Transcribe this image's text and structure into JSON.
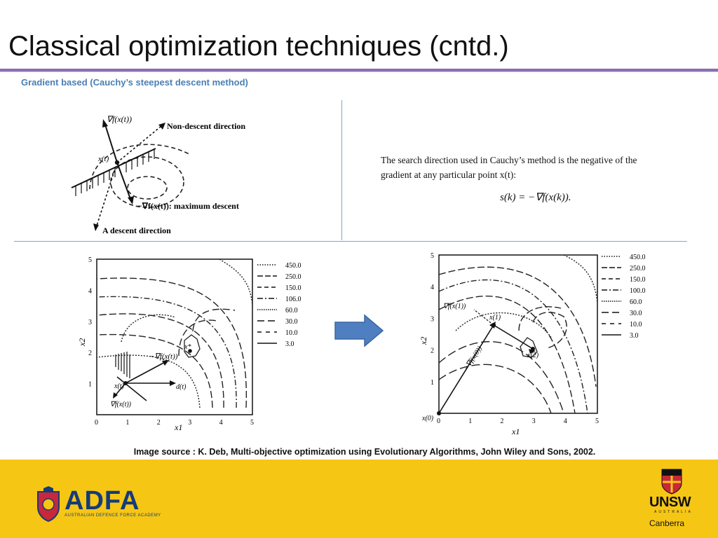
{
  "slide": {
    "title": "Classical optimization techniques (cntd.)",
    "subtitle": "Gradient based (Cauchy’s steepest descent method)",
    "caption": "Image source : K. Deb, Multi-objective optimization using Evolutionary Algorithms, John Wiley and Sons, 2002."
  },
  "diagram": {
    "grad_label": "∇f(x(t))",
    "point_label": "x(t)",
    "non_descent": "Non-descent direction",
    "max_descent": "−∇f(x(t)): maximum descent",
    "descent": "A descent direction"
  },
  "search_text": {
    "line1": "The search direction used in Cauchy’s method is the negative of the",
    "line2": "gradient at any particular point x(t):",
    "formula": "s(k) = −∇f(x(k))."
  },
  "plot_left": {
    "legend": [
      "450.0",
      "250.0",
      "150.0",
      "106.0",
      "60.0",
      "30.0",
      "10.0",
      "3.0"
    ],
    "xticks": [
      "0",
      "1",
      "2",
      "3",
      "4",
      "5"
    ],
    "yticks": [
      "1",
      "2",
      "3",
      "4",
      "5"
    ],
    "xlabel": "x1",
    "ylabel": "x2",
    "labels": {
      "neg_grad": "−∇f(x(t))",
      "point": "x(t)",
      "direction": "d(t)",
      "grad": "∇f(x(t))",
      "optimum": "x*"
    }
  },
  "plot_right": {
    "legend": [
      "450.0",
      "250.0",
      "150.0",
      "100.0",
      "60.0",
      "30.0",
      "10.0",
      "3.0"
    ],
    "xticks": [
      "0",
      "1",
      "2",
      "3",
      "4",
      "5"
    ],
    "yticks": [
      "1",
      "2",
      "3",
      "4",
      "5"
    ],
    "xlabel": "x1",
    "ylabel": "x2",
    "labels": {
      "grad1": "∇f(x(1))",
      "x1": "x(1)",
      "grad0": "−∇f(x(0))",
      "x2": "x(2)",
      "x0": "x(0)"
    }
  },
  "arrow": {
    "color": "#4f7fc0"
  },
  "footer": {
    "adfa": "ADFA",
    "adfa_sub": "AUSTRALIAN DEFENCE FORCE ACADEMY",
    "unsw": "UNSW",
    "unsw_sub": "AUSTRALIA",
    "unsw_city": "Canberra",
    "background": "#f6c615"
  }
}
